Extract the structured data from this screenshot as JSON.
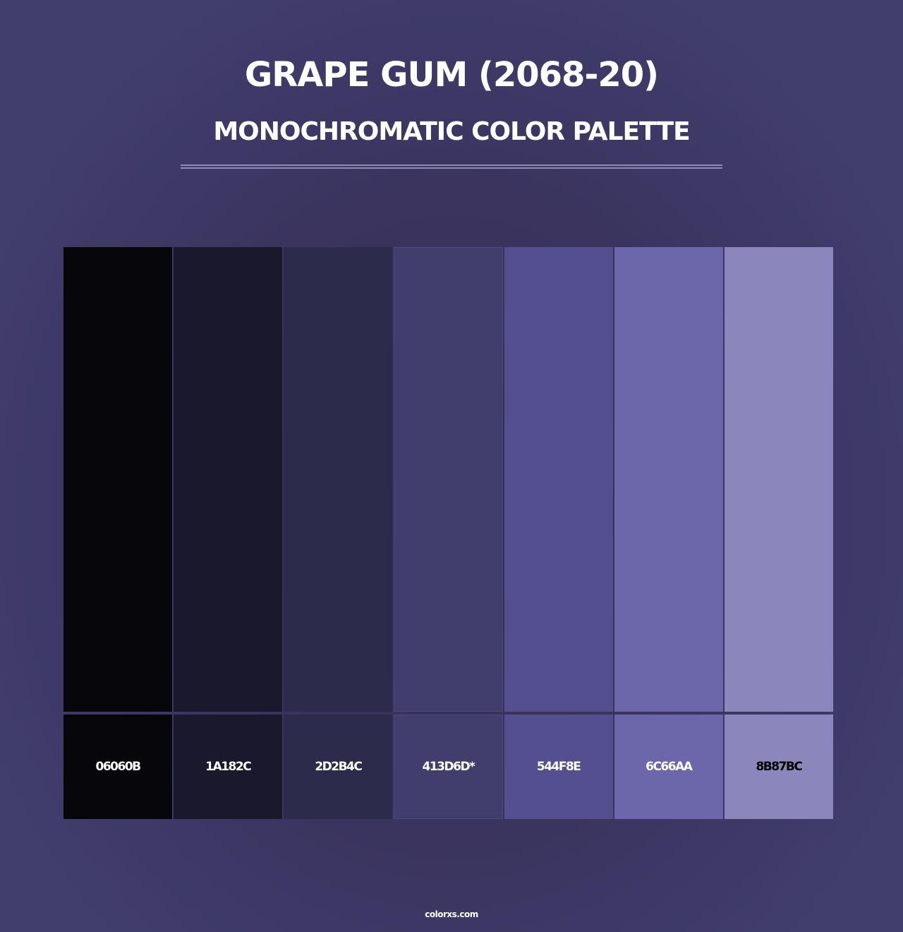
{
  "header": {
    "title": "GRAPE GUM (2068-20)",
    "subtitle": "MONOCHROMATIC COLOR PALETTE"
  },
  "background_color": "#413D6D",
  "swatches": [
    {
      "hex": "#06060B",
      "label": "06060B",
      "text_color": "#ffffff"
    },
    {
      "hex": "#1A182C",
      "label": "1A182C",
      "text_color": "#ffffff"
    },
    {
      "hex": "#2D2B4C",
      "label": "2D2B4C",
      "text_color": "#ffffff"
    },
    {
      "hex": "#413D6D",
      "label": "413D6D*",
      "text_color": "#ffffff"
    },
    {
      "hex": "#544F8E",
      "label": "544F8E",
      "text_color": "#ffffff"
    },
    {
      "hex": "#6C66AA",
      "label": "6C66AA",
      "text_color": "#ffffff"
    },
    {
      "hex": "#8B87BC",
      "label": "8B87BC",
      "text_color": "#000000"
    }
  ],
  "footer": {
    "brand": "colorxs.com"
  }
}
